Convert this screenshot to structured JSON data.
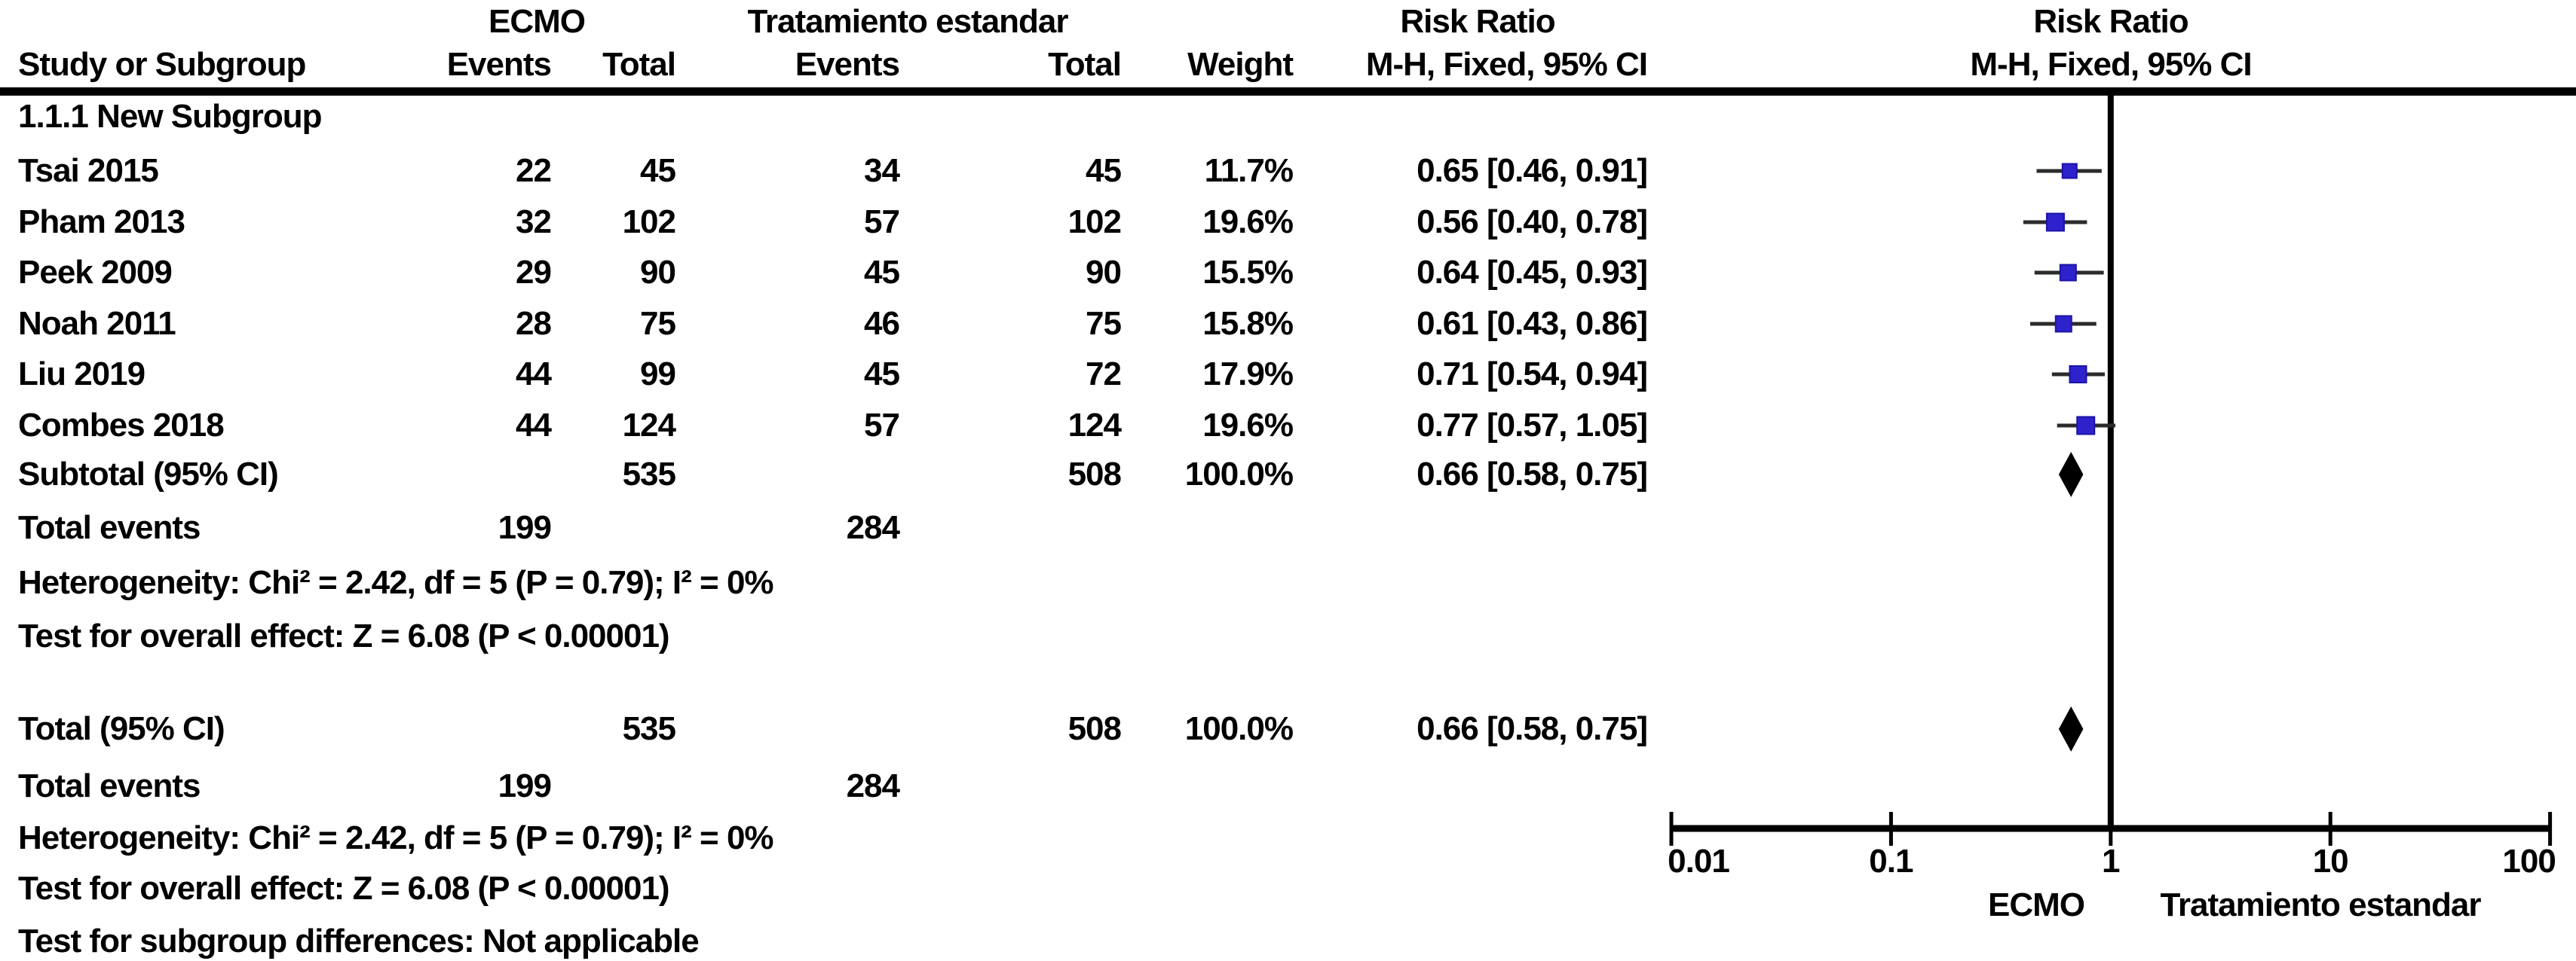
{
  "table": {
    "group1_header": "ECMO",
    "group2_header": "Tratamiento estandar",
    "risk_ratio_header_table": "Risk Ratio",
    "risk_ratio_header_plot": "Risk Ratio",
    "col_study": "Study or Subgroup",
    "col_events1": "Events",
    "col_total1": "Total",
    "col_events2": "Events",
    "col_total2": "Total",
    "col_weight": "Weight",
    "col_ci_table": "M-H, Fixed, 95% CI",
    "col_ci_plot": "M-H, Fixed, 95% CI",
    "subgroup_label": "1.1.1 New Subgroup",
    "subtotal": {
      "label": "Subtotal (95% CI)",
      "total1": "535",
      "total2": "508",
      "weight": "100.0%",
      "ci": "0.66 [0.58, 0.75]"
    },
    "total_events_1": {
      "label": "Total events",
      "events1": "199",
      "events2": "284"
    },
    "heterogeneity_1": "Heterogeneity: Chi² = 2.42, df = 5 (P = 0.79); I² = 0%",
    "overall_effect_1": "Test for overall effect: Z = 6.08 (P < 0.00001)",
    "total": {
      "label": "Total (95% CI)",
      "total1": "535",
      "total2": "508",
      "weight": "100.0%",
      "ci": "0.66 [0.58, 0.75]"
    },
    "total_events_2": {
      "label": "Total events",
      "events1": "199",
      "events2": "284"
    },
    "heterogeneity_2": "Heterogeneity: Chi² = 2.42, df = 5 (P = 0.79); I² = 0%",
    "overall_effect_2": "Test for overall effect: Z = 6.08 (P < 0.00001)",
    "subgroup_diff": "Test for subgroup differences: Not applicable"
  },
  "chart_data": {
    "type": "forest",
    "effect_measure": "Risk Ratio, M-H, Fixed, 95% CI",
    "x_scale": "log10",
    "x_ticks": [
      "0.01",
      "0.1",
      "1",
      "10",
      "100"
    ],
    "xlim": [
      0.01,
      100
    ],
    "null_line": 1,
    "axis_label_left": "ECMO",
    "axis_label_right": "Tratamiento estandar",
    "studies": [
      {
        "name": "Tsai 2015",
        "events1": "22",
        "total1": "45",
        "events2": "34",
        "total2": "45",
        "weight": "11.7%",
        "ci": "0.65 [0.46, 0.91]",
        "rr": 0.65,
        "lo": 0.46,
        "hi": 0.91,
        "w": 11.7
      },
      {
        "name": "Pham 2013",
        "events1": "32",
        "total1": "102",
        "events2": "57",
        "total2": "102",
        "weight": "19.6%",
        "ci": "0.56 [0.40, 0.78]",
        "rr": 0.56,
        "lo": 0.4,
        "hi": 0.78,
        "w": 19.6
      },
      {
        "name": "Peek 2009",
        "events1": "29",
        "total1": "90",
        "events2": "45",
        "total2": "90",
        "weight": "15.5%",
        "ci": "0.64 [0.45, 0.93]",
        "rr": 0.64,
        "lo": 0.45,
        "hi": 0.93,
        "w": 15.5
      },
      {
        "name": "Noah 2011",
        "events1": "28",
        "total1": "75",
        "events2": "46",
        "total2": "75",
        "weight": "15.8%",
        "ci": "0.61 [0.43, 0.86]",
        "rr": 0.61,
        "lo": 0.43,
        "hi": 0.86,
        "w": 15.8
      },
      {
        "name": "Liu 2019",
        "events1": "44",
        "total1": "99",
        "events2": "45",
        "total2": "72",
        "weight": "17.9%",
        "ci": "0.71 [0.54, 0.94]",
        "rr": 0.71,
        "lo": 0.54,
        "hi": 0.94,
        "w": 17.9
      },
      {
        "name": "Combes 2018",
        "events1": "44",
        "total1": "124",
        "events2": "57",
        "total2": "124",
        "weight": "19.6%",
        "ci": "0.77 [0.57, 1.05]",
        "rr": 0.77,
        "lo": 0.57,
        "hi": 1.05,
        "w": 19.6
      }
    ],
    "subtotal_effect": {
      "rr": 0.66,
      "lo": 0.58,
      "hi": 0.75
    },
    "total_effect": {
      "rr": 0.66,
      "lo": 0.58,
      "hi": 0.75
    },
    "colors": {
      "square": "#2d22cc",
      "square_border": "#1d14a6",
      "ci_line": "#2b2b2b",
      "diamond": "#000000",
      "axis": "#000000"
    }
  }
}
